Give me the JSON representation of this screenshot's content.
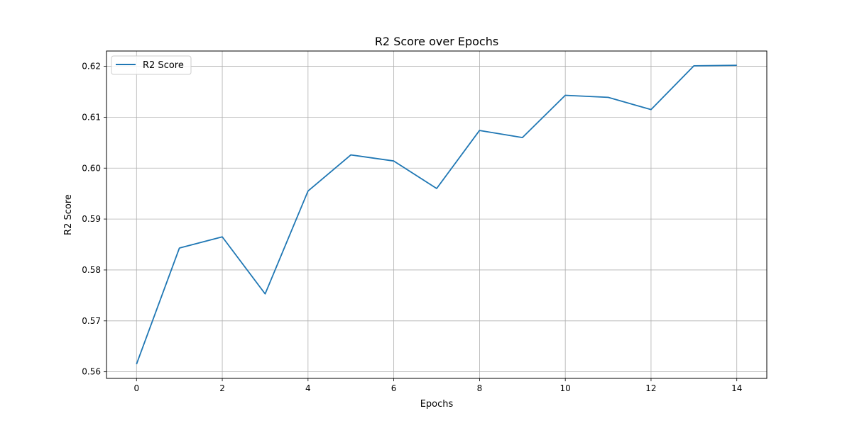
{
  "chart_data": {
    "type": "line",
    "title": "R2 Score over Epochs",
    "xlabel": "Epochs",
    "ylabel": "R2 Score",
    "xlim": [
      -0.7,
      14.7
    ],
    "ylim": [
      0.5587,
      0.623
    ],
    "xticks": [
      0,
      2,
      4,
      6,
      8,
      10,
      12,
      14
    ],
    "xtick_labels": [
      "0",
      "2",
      "4",
      "6",
      "8",
      "10",
      "12",
      "14"
    ],
    "yticks": [
      0.56,
      0.57,
      0.58,
      0.59,
      0.6,
      0.61,
      0.62
    ],
    "ytick_labels": [
      "0.56",
      "0.57",
      "0.58",
      "0.59",
      "0.60",
      "0.61",
      "0.62"
    ],
    "grid": true,
    "legend_position": "top-left",
    "series": [
      {
        "name": "R2 Score",
        "color": "#1f77b4",
        "x": [
          0,
          1,
          2,
          3,
          4,
          5,
          6,
          7,
          8,
          9,
          10,
          11,
          12,
          13,
          14
        ],
        "y": [
          0.5615,
          0.5843,
          0.5865,
          0.5753,
          0.5955,
          0.6026,
          0.6014,
          0.596,
          0.6074,
          0.606,
          0.6143,
          0.6139,
          0.6115,
          0.6201,
          0.6202
        ]
      }
    ]
  }
}
